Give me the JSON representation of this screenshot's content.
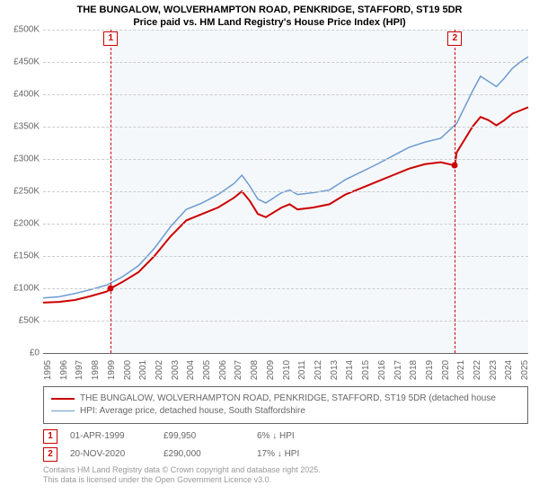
{
  "title": {
    "line1": "THE BUNGALOW, WOLVERHAMPTON ROAD, PENKRIDGE, STAFFORD, ST19 5DR",
    "line2": "Price paid vs. HM Land Registry's House Price Index (HPI)",
    "fontsize": 11,
    "color": "#000000"
  },
  "chart": {
    "type": "line",
    "background_color": "#ffffff",
    "plot_background_color": "#f5f8fb",
    "grid_color": "#cccccc",
    "axis_color": "#666666",
    "tick_fontsize": 10,
    "tick_color": "#666666",
    "x": {
      "min": 1995,
      "max": 2025.5,
      "ticks": [
        1995,
        1996,
        1997,
        1998,
        1999,
        2000,
        2001,
        2002,
        2003,
        2004,
        2005,
        2006,
        2007,
        2008,
        2009,
        2010,
        2011,
        2012,
        2013,
        2014,
        2015,
        2016,
        2017,
        2018,
        2019,
        2020,
        2021,
        2022,
        2023,
        2024,
        2025
      ],
      "plot_bg_start": 1999.25
    },
    "y": {
      "min": 0,
      "max": 500000,
      "ticks": [
        0,
        50000,
        100000,
        150000,
        200000,
        250000,
        300000,
        350000,
        400000,
        450000,
        500000
      ],
      "labels": [
        "£0",
        "£50K",
        "£100K",
        "£150K",
        "£200K",
        "£250K",
        "£300K",
        "£350K",
        "£400K",
        "£450K",
        "£500K"
      ]
    },
    "vlines": [
      {
        "x": 1999.25,
        "label": "1"
      },
      {
        "x": 2020.89,
        "label": "2"
      }
    ],
    "series": [
      {
        "name": "THE BUNGALOW, WOLVERHAMPTON ROAD, PENKRIDGE, STAFFORD, ST19 5DR (detached house",
        "color": "#cc0000",
        "width": 2,
        "points": [
          [
            1995,
            78000
          ],
          [
            1996,
            79000
          ],
          [
            1997,
            82000
          ],
          [
            1998,
            88000
          ],
          [
            1999,
            95000
          ],
          [
            1999.25,
            99950
          ],
          [
            2000,
            110000
          ],
          [
            2001,
            125000
          ],
          [
            2002,
            150000
          ],
          [
            2003,
            180000
          ],
          [
            2004,
            205000
          ],
          [
            2005,
            215000
          ],
          [
            2006,
            225000
          ],
          [
            2007,
            240000
          ],
          [
            2007.5,
            250000
          ],
          [
            2008,
            235000
          ],
          [
            2008.5,
            215000
          ],
          [
            2009,
            210000
          ],
          [
            2010,
            225000
          ],
          [
            2010.5,
            230000
          ],
          [
            2011,
            222000
          ],
          [
            2012,
            225000
          ],
          [
            2013,
            230000
          ],
          [
            2014,
            245000
          ],
          [
            2015,
            255000
          ],
          [
            2016,
            265000
          ],
          [
            2017,
            275000
          ],
          [
            2018,
            285000
          ],
          [
            2019,
            292000
          ],
          [
            2020,
            295000
          ],
          [
            2020.89,
            290000
          ],
          [
            2021,
            310000
          ],
          [
            2021.5,
            330000
          ],
          [
            2022,
            350000
          ],
          [
            2022.5,
            365000
          ],
          [
            2023,
            360000
          ],
          [
            2023.5,
            352000
          ],
          [
            2024,
            360000
          ],
          [
            2024.5,
            370000
          ],
          [
            2025,
            375000
          ],
          [
            2025.5,
            380000
          ]
        ],
        "markers": [
          {
            "x": 1999.25,
            "y": 99950
          },
          {
            "x": 2020.89,
            "y": 290000
          }
        ]
      },
      {
        "name": "HPI: Average price, detached house, South Staffordshire",
        "color": "#6b9bd1",
        "width": 1.5,
        "points": [
          [
            1995,
            85000
          ],
          [
            1996,
            87000
          ],
          [
            1997,
            92000
          ],
          [
            1998,
            98000
          ],
          [
            1999,
            105000
          ],
          [
            2000,
            118000
          ],
          [
            2001,
            135000
          ],
          [
            2002,
            162000
          ],
          [
            2003,
            195000
          ],
          [
            2004,
            222000
          ],
          [
            2005,
            232000
          ],
          [
            2006,
            245000
          ],
          [
            2007,
            262000
          ],
          [
            2007.5,
            275000
          ],
          [
            2008,
            258000
          ],
          [
            2008.5,
            238000
          ],
          [
            2009,
            232000
          ],
          [
            2010,
            248000
          ],
          [
            2010.5,
            252000
          ],
          [
            2011,
            245000
          ],
          [
            2012,
            248000
          ],
          [
            2013,
            252000
          ],
          [
            2014,
            268000
          ],
          [
            2015,
            280000
          ],
          [
            2016,
            292000
          ],
          [
            2017,
            305000
          ],
          [
            2018,
            318000
          ],
          [
            2019,
            326000
          ],
          [
            2020,
            332000
          ],
          [
            2021,
            355000
          ],
          [
            2021.5,
            380000
          ],
          [
            2022,
            405000
          ],
          [
            2022.5,
            428000
          ],
          [
            2023,
            420000
          ],
          [
            2023.5,
            412000
          ],
          [
            2024,
            425000
          ],
          [
            2024.5,
            440000
          ],
          [
            2025,
            450000
          ],
          [
            2025.5,
            458000
          ]
        ]
      }
    ]
  },
  "legend": {
    "border_color": "#666666",
    "fontsize": 10,
    "text_color": "#666666"
  },
  "sales": [
    {
      "label": "1",
      "date": "01-APR-1999",
      "price": "£99,950",
      "delta": "6% ↓ HPI"
    },
    {
      "label": "2",
      "date": "20-NOV-2020",
      "price": "£290,000",
      "delta": "17% ↓ HPI"
    }
  ],
  "attribution": {
    "line1": "Contains HM Land Registry data © Crown copyright and database right 2025.",
    "line2": "This data is licensed under the Open Government Licence v3.0.",
    "fontsize": 9,
    "color": "#999999"
  }
}
